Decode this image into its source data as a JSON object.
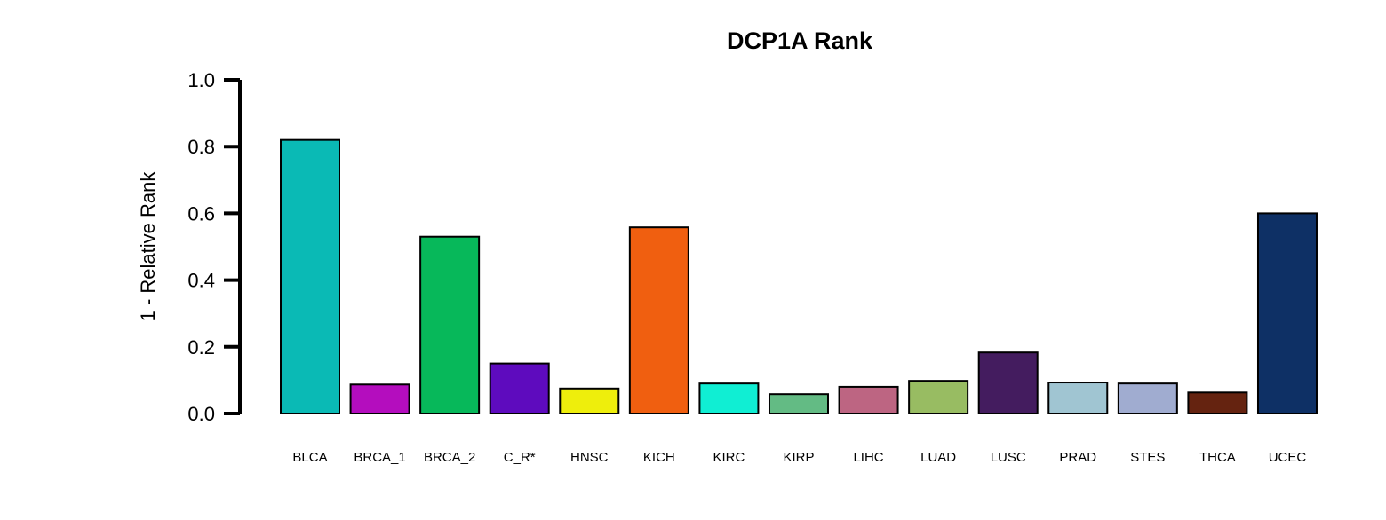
{
  "chart_data": {
    "type": "bar",
    "title": "DCP1A Rank",
    "xlabel": "",
    "ylabel": "1 - Relative Rank",
    "ylim": [
      0,
      1
    ],
    "yticks": [
      "0.0",
      "0.2",
      "0.4",
      "0.6",
      "0.8",
      "1.0"
    ],
    "ytick_values": [
      0,
      0.2,
      0.4,
      0.6,
      0.8,
      1.0
    ],
    "categories": [
      "BLCA",
      "BRCA_1",
      "BRCA_2",
      "C_R*",
      "HNSC",
      "KICH",
      "KIRC",
      "KIRP",
      "LIHC",
      "LUAD",
      "LUSC",
      "PRAD",
      "STES",
      "THCA",
      "UCEC"
    ],
    "values": [
      0.82,
      0.087,
      0.53,
      0.15,
      0.075,
      0.558,
      0.09,
      0.058,
      0.08,
      0.098,
      0.183,
      0.093,
      0.09,
      0.063,
      0.6
    ],
    "colors": [
      "#0ABAB5",
      "#B40DBE",
      "#07B85A",
      "#5E0BBE",
      "#EEEE0C",
      "#F05F10",
      "#10EED3",
      "#63BB84",
      "#BD6582",
      "#98BC62",
      "#441C5F",
      "#A0C5D2",
      "#A0ACD0",
      "#652310",
      "#0E3065"
    ],
    "grid": false,
    "legend": "none"
  }
}
